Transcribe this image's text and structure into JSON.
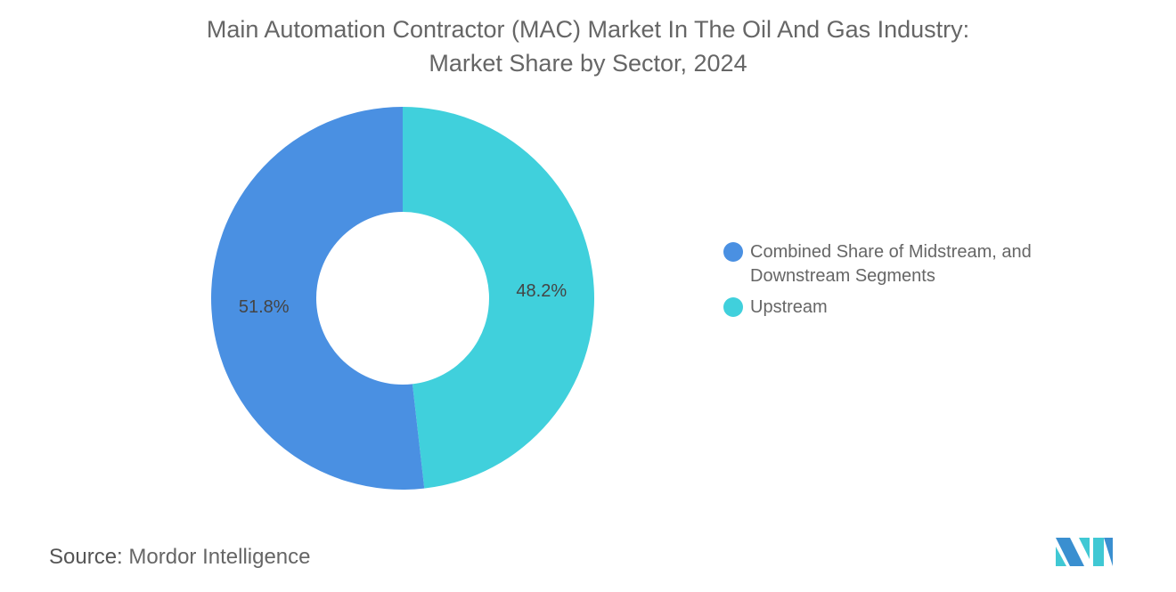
{
  "title_line1": "Main Automation Contractor (MAC) Market In The Oil And Gas Industry:",
  "title_line2": "Market Share by Sector, 2024",
  "source_label": "Source:",
  "source_value": "Mordor Intelligence",
  "chart_data": {
    "type": "pie",
    "donut": true,
    "title": "Main Automation Contractor (MAC) Market In The Oil And Gas Industry: Market Share by Sector, 2024",
    "categories": [
      "Combined Share of Midstream, and Downstream Segments",
      "Upstream"
    ],
    "values": [
      51.8,
      48.2
    ],
    "labels": [
      "51.8%",
      "48.2%"
    ],
    "colors": [
      "#4A90E2",
      "#40D0DC"
    ],
    "legend_position": "right"
  }
}
